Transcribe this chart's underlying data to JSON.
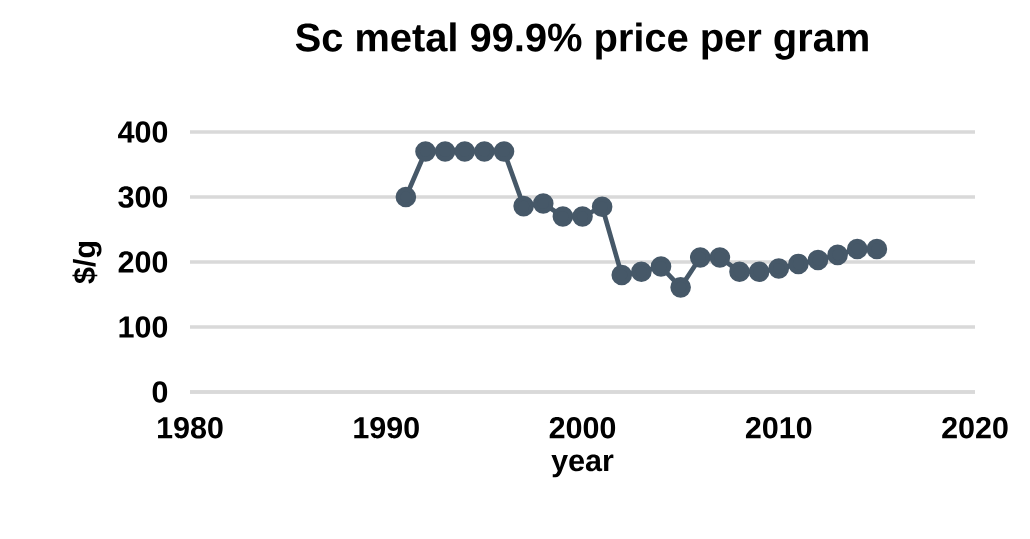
{
  "chart_data": {
    "type": "line",
    "title": "Sc metal 99.9% price per gram",
    "xlabel": "year",
    "ylabel": "$/g",
    "x": [
      1991,
      1992,
      1993,
      1994,
      1995,
      1996,
      1997,
      1998,
      1999,
      2000,
      2001,
      2002,
      2003,
      2004,
      2005,
      2006,
      2007,
      2008,
      2009,
      2010,
      2011,
      2012,
      2013,
      2014,
      2015
    ],
    "series": [
      {
        "color": "#465868",
        "values": [
          300,
          370,
          370,
          370,
          370,
          370,
          286,
          290,
          270,
          270,
          285,
          180,
          185,
          193,
          161,
          207,
          207,
          185,
          185,
          190,
          197,
          203,
          211,
          220,
          220
        ]
      }
    ],
    "xlim": [
      1980,
      2020
    ],
    "xticks": [
      1980,
      1990,
      2000,
      2010,
      2020
    ],
    "ylim": [
      0,
      400
    ],
    "yticks": [
      0,
      100,
      200,
      300,
      400
    ],
    "grid": "y",
    "marker": "circle",
    "line_style": "solid"
  }
}
